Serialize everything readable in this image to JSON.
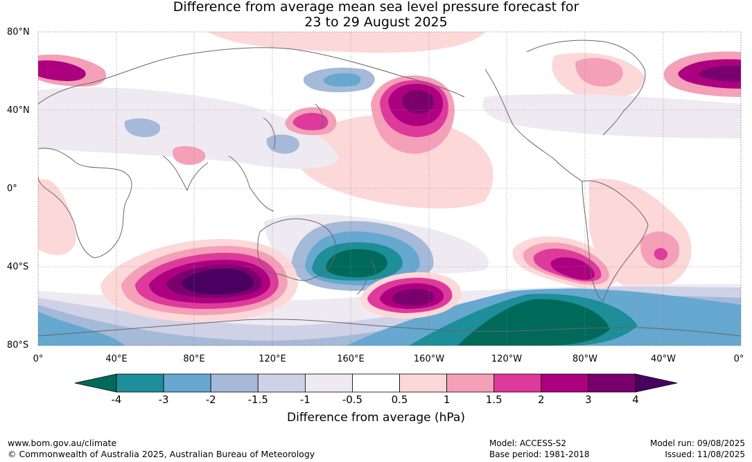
{
  "title_line1": "Difference from average mean sea level pressure forecast for",
  "title_line2": "23 to 29 August 2025",
  "lat_labels": [
    "80°N",
    "40°N",
    "0°",
    "40°S",
    "80°S"
  ],
  "lon_labels": [
    "0°",
    "40°E",
    "80°E",
    "120°E",
    "160°E",
    "160°W",
    "120°W",
    "80°W",
    "40°W",
    "0°"
  ],
  "colorbar": {
    "title": "Difference from average (hPa)",
    "ticks": [
      "-4",
      "-3",
      "-2",
      "-1.5",
      "-1",
      "-0.5",
      "0.5",
      "1",
      "1.5",
      "2",
      "3",
      "4"
    ],
    "colors": [
      "#006a5a",
      "#1e8e99",
      "#66a8cf",
      "#a5b9d8",
      "#cfd1e6",
      "#efeaf2",
      "#ffffff",
      "#fdd8d8",
      "#f4a0b8",
      "#de3a9b",
      "#ad0080",
      "#7a006e",
      "#4a0060"
    ]
  },
  "footer": {
    "url": "www.bom.gov.au/climate",
    "copyright": "© Commonwealth of Australia 2025, Australian Bureau of Meteorology",
    "model": "Model: ACCESS-S2",
    "base_period": "Base period: 1981-2018",
    "model_run": "Model run: 09/08/2025",
    "issued": "Issued: 11/08/2025"
  }
}
